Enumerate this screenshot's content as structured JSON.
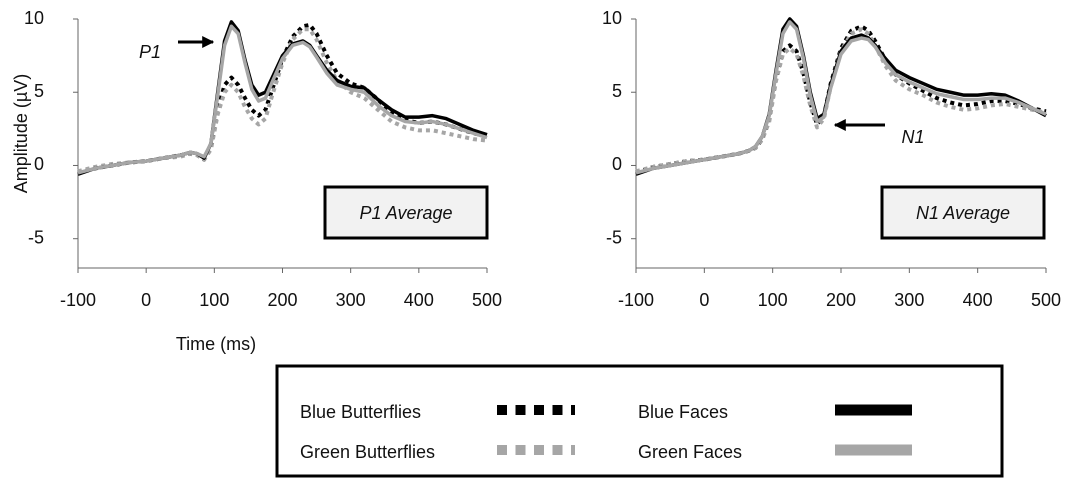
{
  "chart_data": [
    {
      "type": "line",
      "y_label": "Amplitude (µV)",
      "x_label": "Time (ms)",
      "peak_label": "P1",
      "box_label": "P1 Average",
      "legend": "bottom",
      "xlim": [
        -100,
        500
      ],
      "xticks": [
        -100,
        0,
        100,
        200,
        300,
        400,
        500
      ],
      "ylim": [
        -7,
        10
      ],
      "yticks": [
        -5,
        0,
        5,
        10
      ],
      "x": [
        -100,
        -75,
        -50,
        -25,
        0,
        25,
        50,
        65,
        75,
        85,
        95,
        105,
        115,
        125,
        135,
        145,
        155,
        165,
        175,
        185,
        200,
        215,
        230,
        240,
        250,
        265,
        280,
        300,
        320,
        340,
        360,
        380,
        400,
        420,
        440,
        460,
        480,
        500
      ],
      "series": [
        {
          "name": "Blue Butterflies",
          "color": "#000000",
          "style": "dotted",
          "values": [
            -0.5,
            -0.2,
            0,
            0.2,
            0.3,
            0.5,
            0.7,
            0.8,
            0.7,
            0.4,
            1.2,
            3.8,
            5.5,
            6.0,
            5.5,
            4.6,
            3.8,
            3.4,
            3.8,
            5.2,
            7.3,
            8.8,
            9.5,
            9.6,
            9.0,
            7.5,
            6.3,
            5.6,
            5.3,
            4.5,
            3.6,
            3.1,
            2.9,
            3.0,
            2.8,
            2.5,
            2.2,
            2.0
          ]
        },
        {
          "name": "Green Butterflies",
          "color": "#a6a6a6",
          "style": "dotted",
          "values": [
            -0.4,
            -0.1,
            0.1,
            0.2,
            0.3,
            0.5,
            0.6,
            0.8,
            0.7,
            0.4,
            1.1,
            3.5,
            5.0,
            5.5,
            5.0,
            4.0,
            3.2,
            2.8,
            3.2,
            4.8,
            7.0,
            8.6,
            9.3,
            9.3,
            8.6,
            7.0,
            5.8,
            5.0,
            4.6,
            3.8,
            3.0,
            2.6,
            2.4,
            2.4,
            2.2,
            2.0,
            1.8,
            1.7
          ]
        },
        {
          "name": "Blue Faces",
          "color": "#000000",
          "style": "solid",
          "values": [
            -0.6,
            -0.2,
            0,
            0.2,
            0.3,
            0.5,
            0.7,
            0.9,
            0.8,
            0.5,
            1.5,
            5,
            8.5,
            9.8,
            9.2,
            7.2,
            5.5,
            4.8,
            5.0,
            6.0,
            7.5,
            8.3,
            8.5,
            8.2,
            7.5,
            6.5,
            5.8,
            5.4,
            5.3,
            4.5,
            3.8,
            3.3,
            3.3,
            3.4,
            3.2,
            2.8,
            2.4,
            2.1
          ]
        },
        {
          "name": "Green Faces",
          "color": "#a6a6a6",
          "style": "solid",
          "values": [
            -0.5,
            -0.2,
            0,
            0.2,
            0.3,
            0.5,
            0.7,
            0.9,
            0.8,
            0.6,
            1.5,
            4.8,
            8.2,
            9.5,
            9.0,
            7.0,
            5.2,
            4.4,
            4.6,
            5.7,
            7.3,
            8.2,
            8.4,
            8.1,
            7.4,
            6.3,
            5.5,
            5.2,
            5.0,
            4.1,
            3.4,
            3.0,
            2.9,
            3.0,
            2.8,
            2.5,
            2.2,
            1.9
          ]
        }
      ]
    },
    {
      "type": "line",
      "peak_label": "N1",
      "box_label": "N1 Average",
      "xlim": [
        -100,
        500
      ],
      "xticks": [
        -100,
        0,
        100,
        200,
        300,
        400,
        500
      ],
      "ylim": [
        -7,
        10
      ],
      "yticks": [
        -5,
        0,
        5,
        10
      ],
      "x": [
        -100,
        -75,
        -50,
        -25,
        0,
        25,
        50,
        65,
        75,
        85,
        95,
        105,
        115,
        125,
        135,
        145,
        155,
        165,
        175,
        185,
        200,
        215,
        230,
        240,
        250,
        265,
        280,
        300,
        320,
        340,
        360,
        380,
        400,
        420,
        440,
        460,
        480,
        500
      ],
      "series": [
        {
          "color": "#000000",
          "style": "dotted",
          "values": [
            -0.5,
            -0.1,
            0.1,
            0.3,
            0.4,
            0.6,
            0.8,
            1.0,
            1.2,
            1.8,
            3.2,
            6.0,
            7.8,
            8.2,
            7.8,
            6.3,
            4.3,
            2.8,
            3.4,
            5.6,
            8.0,
            9.2,
            9.5,
            9.2,
            8.5,
            7.2,
            6.2,
            5.6,
            5.1,
            4.6,
            4.3,
            4.1,
            4.2,
            4.4,
            4.4,
            4.2,
            3.9,
            3.7
          ]
        },
        {
          "color": "#a6a6a6",
          "style": "dotted",
          "values": [
            -0.4,
            -0.1,
            0.1,
            0.3,
            0.4,
            0.6,
            0.8,
            1.0,
            1.2,
            1.8,
            3.0,
            5.8,
            7.6,
            8.0,
            7.6,
            6.1,
            4.1,
            2.6,
            3.2,
            5.4,
            7.8,
            9.0,
            9.3,
            9.0,
            8.2,
            6.8,
            5.8,
            5.2,
            4.8,
            4.3,
            4.0,
            3.8,
            3.9,
            4.1,
            4.2,
            4.0,
            3.8,
            3.6
          ]
        },
        {
          "color": "#000000",
          "style": "solid",
          "values": [
            -0.6,
            -0.2,
            0,
            0.2,
            0.4,
            0.6,
            0.8,
            1.0,
            1.3,
            2.0,
            3.5,
            6.5,
            9.3,
            10.0,
            9.5,
            7.5,
            5.0,
            3.2,
            3.5,
            5.5,
            7.8,
            8.7,
            8.9,
            8.7,
            8.2,
            7.3,
            6.5,
            6.0,
            5.6,
            5.2,
            5.0,
            4.8,
            4.8,
            4.9,
            4.8,
            4.4,
            3.9,
            3.4
          ]
        },
        {
          "color": "#a6a6a6",
          "style": "solid",
          "values": [
            -0.5,
            -0.2,
            0,
            0.2,
            0.4,
            0.6,
            0.8,
            1.0,
            1.3,
            2.0,
            3.4,
            6.3,
            9.0,
            9.8,
            9.3,
            7.3,
            4.8,
            3.0,
            3.3,
            5.3,
            7.6,
            8.5,
            8.7,
            8.6,
            8.1,
            7.0,
            6.2,
            5.7,
            5.3,
            4.9,
            4.7,
            4.5,
            4.5,
            4.6,
            4.6,
            4.3,
            3.9,
            3.5
          ]
        }
      ]
    }
  ]
}
